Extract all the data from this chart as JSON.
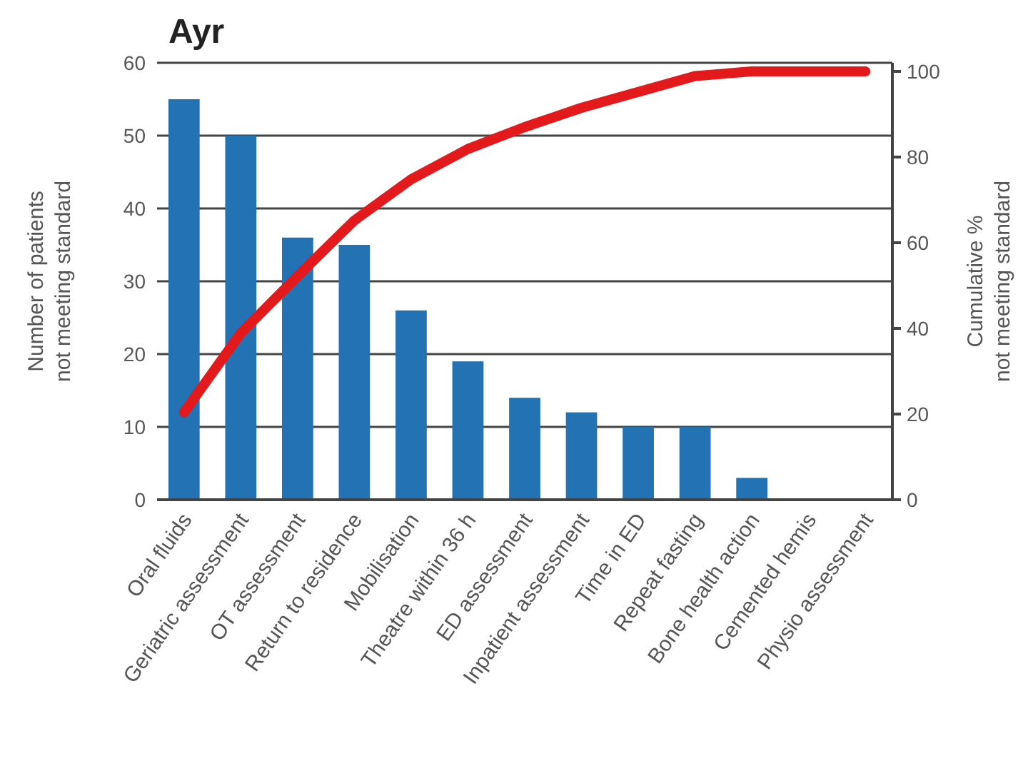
{
  "chart_data": {
    "type": "bar",
    "title": "Ayr",
    "ylabel": "Number of patients\nnot meeting standard",
    "y2label": "Cumulative %\nnot meeting standard",
    "categories": [
      "Oral fluids",
      "Geriatric assessment",
      "OT assessment",
      "Return to residence",
      "Mobilisation",
      "Theatre within 36 h",
      "ED assessment",
      "Inpatient assessment",
      "Time in ED",
      "Repeat fasting",
      "Bone health action",
      "Cemented hemis",
      "Physio assessment"
    ],
    "series": [
      {
        "color": "#2272b4",
        "values": [
          55,
          50,
          36,
          35,
          26,
          19,
          14,
          12,
          10,
          10,
          3,
          0,
          0
        ]
      },
      {
        "type": "line",
        "axis": "y2",
        "color": "#e3191c",
        "values": [
          20.4,
          38.9,
          52.2,
          65.2,
          74.8,
          81.9,
          87.0,
          91.5,
          95.2,
          98.9,
          100,
          100,
          100
        ]
      }
    ],
    "ylim": [
      0,
      60
    ],
    "yticks": [
      0,
      10,
      20,
      30,
      40,
      50,
      60
    ],
    "y2lim": [
      0,
      102
    ],
    "y2ticks": [
      0,
      20,
      40,
      60,
      80,
      100
    ],
    "grid": "y",
    "marker": "none",
    "line_style": "solid"
  }
}
